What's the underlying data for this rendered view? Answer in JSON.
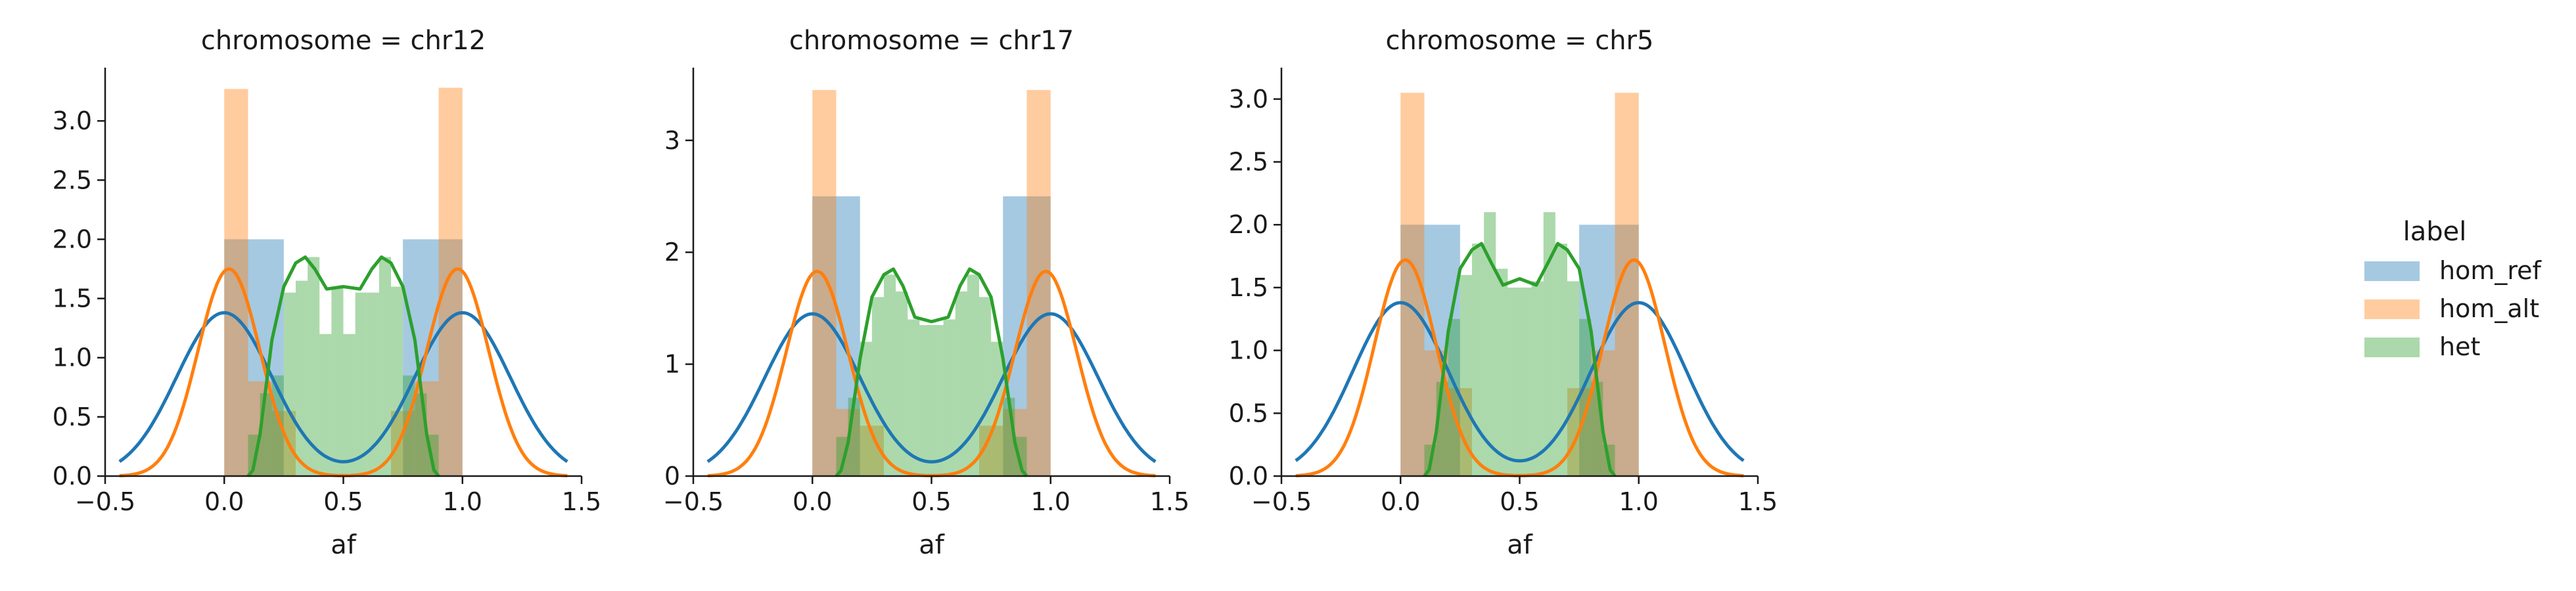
{
  "chart_data": {
    "type": "histogram_kde_facets",
    "legend": {
      "title": "label",
      "placement": "right",
      "entries": [
        {
          "name": "hom_ref",
          "color": "#1f77b4"
        },
        {
          "name": "hom_alt",
          "color": "#ff7f0e"
        },
        {
          "name": "het",
          "color": "#2ca02c"
        }
      ]
    },
    "xlabel": "af",
    "xlim": [
      -0.5,
      1.5
    ],
    "xticks": [
      -0.5,
      0.0,
      0.5,
      1.0,
      1.5
    ],
    "xtick_labels": [
      "−0.5",
      "0.0",
      "0.5",
      "1.0",
      "1.5"
    ],
    "facets": [
      {
        "title": "chromosome = chr12",
        "ylim": [
          0,
          3.45
        ],
        "yticks": [
          0.0,
          0.5,
          1.0,
          1.5,
          2.0,
          2.5,
          3.0
        ],
        "ytick_labels": [
          "0.0",
          "0.5",
          "1.0",
          "1.5",
          "2.0",
          "2.5",
          "3.0"
        ],
        "series": [
          {
            "name": "hom_ref",
            "hist": {
              "bins": [
                [
                  0.0,
                  0.25,
                  2.0
                ],
                [
                  0.75,
                  1.0,
                  2.0
                ]
              ]
            },
            "kde": {
              "peak_x": [
                0.0,
                1.0
              ],
              "peak_y": 1.38,
              "bandwidth": 0.2
            }
          },
          {
            "name": "hom_alt",
            "hist": {
              "bins": [
                [
                  0.0,
                  0.1,
                  3.27
                ],
                [
                  0.1,
                  0.2,
                  0.8
                ],
                [
                  0.2,
                  0.3,
                  0.55
                ],
                [
                  0.7,
                  0.8,
                  0.55
                ],
                [
                  0.8,
                  0.9,
                  0.8
                ],
                [
                  0.9,
                  1.0,
                  3.28
                ]
              ]
            },
            "kde": {
              "peak_x": [
                0.02,
                0.98
              ],
              "peak_y": 1.75,
              "bandwidth": 0.13
            }
          },
          {
            "name": "het",
            "hist": {
              "bins": [
                [
                  0.1,
                  0.15,
                  0.35
                ],
                [
                  0.15,
                  0.2,
                  0.7
                ],
                [
                  0.2,
                  0.25,
                  0.85
                ],
                [
                  0.25,
                  0.3,
                  1.55
                ],
                [
                  0.3,
                  0.35,
                  1.65
                ],
                [
                  0.35,
                  0.4,
                  1.85
                ],
                [
                  0.4,
                  0.45,
                  1.2
                ],
                [
                  0.45,
                  0.5,
                  1.6
                ],
                [
                  0.5,
                  0.55,
                  1.2
                ],
                [
                  0.55,
                  0.6,
                  1.55
                ],
                [
                  0.6,
                  0.65,
                  1.55
                ],
                [
                  0.65,
                  0.7,
                  1.85
                ],
                [
                  0.7,
                  0.75,
                  1.6
                ],
                [
                  0.75,
                  0.8,
                  0.85
                ],
                [
                  0.8,
                  0.85,
                  0.7
                ],
                [
                  0.85,
                  0.9,
                  0.35
                ]
              ]
            },
            "kde": {
              "points": [
                [
                  0.1,
                  0.0
                ],
                [
                  0.12,
                  0.05
                ],
                [
                  0.15,
                  0.35
                ],
                [
                  0.2,
                  1.15
                ],
                [
                  0.25,
                  1.6
                ],
                [
                  0.3,
                  1.8
                ],
                [
                  0.34,
                  1.85
                ],
                [
                  0.38,
                  1.75
                ],
                [
                  0.43,
                  1.58
                ],
                [
                  0.5,
                  1.6
                ],
                [
                  0.57,
                  1.58
                ],
                [
                  0.62,
                  1.75
                ],
                [
                  0.66,
                  1.85
                ],
                [
                  0.7,
                  1.8
                ],
                [
                  0.75,
                  1.6
                ],
                [
                  0.8,
                  1.15
                ],
                [
                  0.85,
                  0.35
                ],
                [
                  0.88,
                  0.05
                ],
                [
                  0.9,
                  0.0
                ]
              ]
            }
          }
        ]
      },
      {
        "title": "chromosome = chr17",
        "ylim": [
          0,
          3.65
        ],
        "yticks": [
          0,
          1,
          2,
          3
        ],
        "ytick_labels": [
          "0",
          "1",
          "2",
          "3"
        ],
        "series": [
          {
            "name": "hom_ref",
            "hist": {
              "bins": [
                [
                  0.0,
                  0.2,
                  2.5
                ],
                [
                  0.8,
                  1.0,
                  2.5
                ]
              ]
            },
            "kde": {
              "peak_x": [
                0.0,
                1.0
              ],
              "peak_y": 1.45,
              "bandwidth": 0.2
            }
          },
          {
            "name": "hom_alt",
            "hist": {
              "bins": [
                [
                  0.0,
                  0.1,
                  3.45
                ],
                [
                  0.1,
                  0.2,
                  0.6
                ],
                [
                  0.2,
                  0.3,
                  0.45
                ],
                [
                  0.7,
                  0.8,
                  0.45
                ],
                [
                  0.8,
                  0.9,
                  0.6
                ],
                [
                  0.9,
                  1.0,
                  3.45
                ]
              ]
            },
            "kde": {
              "peak_x": [
                0.02,
                0.98
              ],
              "peak_y": 1.83,
              "bandwidth": 0.13
            }
          },
          {
            "name": "het",
            "hist": {
              "bins": [
                [
                  0.1,
                  0.15,
                  0.35
                ],
                [
                  0.15,
                  0.2,
                  0.7
                ],
                [
                  0.2,
                  0.25,
                  1.2
                ],
                [
                  0.25,
                  0.3,
                  1.6
                ],
                [
                  0.3,
                  0.35,
                  1.8
                ],
                [
                  0.35,
                  0.4,
                  1.65
                ],
                [
                  0.4,
                  0.45,
                  1.4
                ],
                [
                  0.45,
                  0.5,
                  1.35
                ],
                [
                  0.5,
                  0.55,
                  1.35
                ],
                [
                  0.55,
                  0.6,
                  1.4
                ],
                [
                  0.6,
                  0.65,
                  1.65
                ],
                [
                  0.65,
                  0.7,
                  1.8
                ],
                [
                  0.7,
                  0.75,
                  1.6
                ],
                [
                  0.75,
                  0.8,
                  1.2
                ],
                [
                  0.8,
                  0.85,
                  0.7
                ],
                [
                  0.85,
                  0.9,
                  0.35
                ]
              ]
            },
            "kde": {
              "points": [
                [
                  0.1,
                  0.0
                ],
                [
                  0.12,
                  0.05
                ],
                [
                  0.15,
                  0.3
                ],
                [
                  0.2,
                  1.05
                ],
                [
                  0.25,
                  1.6
                ],
                [
                  0.3,
                  1.8
                ],
                [
                  0.34,
                  1.85
                ],
                [
                  0.38,
                  1.7
                ],
                [
                  0.43,
                  1.42
                ],
                [
                  0.5,
                  1.38
                ],
                [
                  0.57,
                  1.42
                ],
                [
                  0.62,
                  1.7
                ],
                [
                  0.66,
                  1.85
                ],
                [
                  0.7,
                  1.8
                ],
                [
                  0.75,
                  1.6
                ],
                [
                  0.8,
                  1.05
                ],
                [
                  0.85,
                  0.3
                ],
                [
                  0.88,
                  0.05
                ],
                [
                  0.9,
                  0.0
                ]
              ]
            }
          }
        ]
      },
      {
        "title": "chromosome = chr5",
        "ylim": [
          0,
          3.25
        ],
        "yticks": [
          0.0,
          0.5,
          1.0,
          1.5,
          2.0,
          2.5,
          3.0
        ],
        "ytick_labels": [
          "0.0",
          "0.5",
          "1.0",
          "1.5",
          "2.0",
          "2.5",
          "3.0"
        ],
        "series": [
          {
            "name": "hom_ref",
            "hist": {
              "bins": [
                [
                  0.0,
                  0.25,
                  2.0
                ],
                [
                  0.75,
                  1.0,
                  2.0
                ]
              ]
            },
            "kde": {
              "peak_x": [
                0.0,
                1.0
              ],
              "peak_y": 1.38,
              "bandwidth": 0.2
            }
          },
          {
            "name": "hom_alt",
            "hist": {
              "bins": [
                [
                  0.0,
                  0.1,
                  3.05
                ],
                [
                  0.1,
                  0.2,
                  1.0
                ],
                [
                  0.2,
                  0.3,
                  0.7
                ],
                [
                  0.7,
                  0.8,
                  0.7
                ],
                [
                  0.8,
                  0.9,
                  1.0
                ],
                [
                  0.9,
                  1.0,
                  3.05
                ]
              ]
            },
            "kde": {
              "peak_x": [
                0.02,
                0.98
              ],
              "peak_y": 1.72,
              "bandwidth": 0.13
            }
          },
          {
            "name": "het",
            "hist": {
              "bins": [
                [
                  0.1,
                  0.15,
                  0.25
                ],
                [
                  0.15,
                  0.2,
                  0.75
                ],
                [
                  0.2,
                  0.25,
                  1.25
                ],
                [
                  0.25,
                  0.3,
                  1.6
                ],
                [
                  0.3,
                  0.35,
                  1.85
                ],
                [
                  0.35,
                  0.4,
                  2.1
                ],
                [
                  0.4,
                  0.45,
                  1.65
                ],
                [
                  0.45,
                  0.5,
                  1.5
                ],
                [
                  0.5,
                  0.55,
                  1.5
                ],
                [
                  0.55,
                  0.6,
                  1.55
                ],
                [
                  0.6,
                  0.65,
                  2.1
                ],
                [
                  0.65,
                  0.7,
                  1.85
                ],
                [
                  0.7,
                  0.75,
                  1.55
                ],
                [
                  0.75,
                  0.8,
                  1.25
                ],
                [
                  0.8,
                  0.85,
                  0.75
                ],
                [
                  0.85,
                  0.9,
                  0.25
                ]
              ]
            },
            "kde": {
              "points": [
                [
                  0.1,
                  0.0
                ],
                [
                  0.12,
                  0.05
                ],
                [
                  0.15,
                  0.35
                ],
                [
                  0.2,
                  1.15
                ],
                [
                  0.25,
                  1.65
                ],
                [
                  0.3,
                  1.8
                ],
                [
                  0.34,
                  1.85
                ],
                [
                  0.38,
                  1.7
                ],
                [
                  0.43,
                  1.52
                ],
                [
                  0.5,
                  1.57
                ],
                [
                  0.57,
                  1.52
                ],
                [
                  0.62,
                  1.7
                ],
                [
                  0.66,
                  1.85
                ],
                [
                  0.7,
                  1.8
                ],
                [
                  0.75,
                  1.65
                ],
                [
                  0.8,
                  1.15
                ],
                [
                  0.85,
                  0.35
                ],
                [
                  0.88,
                  0.05
                ],
                [
                  0.9,
                  0.0
                ]
              ]
            }
          }
        ]
      }
    ]
  }
}
